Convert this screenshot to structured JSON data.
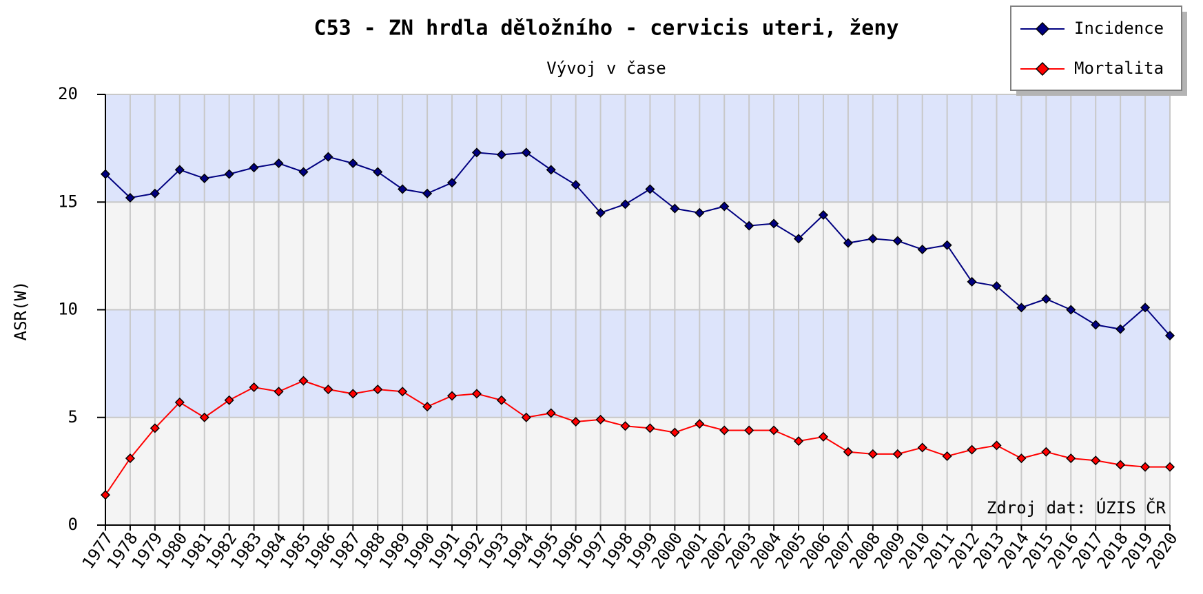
{
  "chart_data": {
    "type": "line",
    "title": "C53 - ZN hrdla děložního - cervicis uteri, ženy",
    "subtitle": "Vývoj v čase",
    "y_label": "ASR(W)",
    "annotation": "Zdroj dat: ÚZIS ČR",
    "categories": [
      "1977",
      "1978",
      "1979",
      "1980",
      "1981",
      "1982",
      "1983",
      "1984",
      "1985",
      "1986",
      "1987",
      "1988",
      "1989",
      "1990",
      "1991",
      "1992",
      "1993",
      "1994",
      "1995",
      "1996",
      "1997",
      "1998",
      "1999",
      "2000",
      "2001",
      "2002",
      "2003",
      "2004",
      "2005",
      "2006",
      "2007",
      "2008",
      "2009",
      "2010",
      "2011",
      "2012",
      "2013",
      "2014",
      "2015",
      "2016",
      "2017",
      "2018",
      "2019",
      "2020"
    ],
    "series": [
      {
        "name": "Incidence",
        "color": "#000080",
        "values": [
          16.3,
          15.2,
          15.4,
          16.5,
          16.1,
          16.3,
          16.6,
          16.8,
          16.4,
          17.1,
          16.8,
          16.4,
          15.6,
          15.4,
          15.9,
          17.3,
          17.2,
          17.3,
          16.5,
          15.8,
          14.5,
          14.9,
          15.6,
          14.7,
          14.5,
          14.8,
          13.9,
          14.0,
          13.3,
          14.4,
          13.1,
          13.3,
          13.2,
          12.8,
          13.0,
          11.3,
          11.1,
          10.1,
          10.5,
          10.0,
          9.3,
          9.1,
          10.1,
          8.8
        ]
      },
      {
        "name": "Mortalita",
        "color": "#ff0000",
        "values": [
          1.4,
          3.1,
          4.5,
          5.7,
          5.0,
          5.8,
          6.4,
          6.2,
          6.7,
          6.3,
          6.1,
          6.3,
          6.2,
          5.5,
          6.0,
          6.1,
          5.8,
          5.0,
          5.2,
          4.8,
          4.9,
          4.6,
          4.5,
          4.3,
          4.7,
          4.4,
          4.4,
          4.4,
          3.9,
          4.1,
          3.4,
          3.3,
          3.3,
          3.6,
          3.2,
          3.5,
          3.7,
          3.1,
          3.4,
          3.1,
          3.0,
          2.8,
          2.7,
          2.7
        ]
      }
    ],
    "ylim": [
      0,
      20
    ],
    "yticks": [
      0,
      5,
      10,
      15,
      20
    ],
    "grid": true,
    "band_colors": [
      "#f4f4f4",
      "#dde4fb"
    ],
    "legend": "top-right"
  }
}
